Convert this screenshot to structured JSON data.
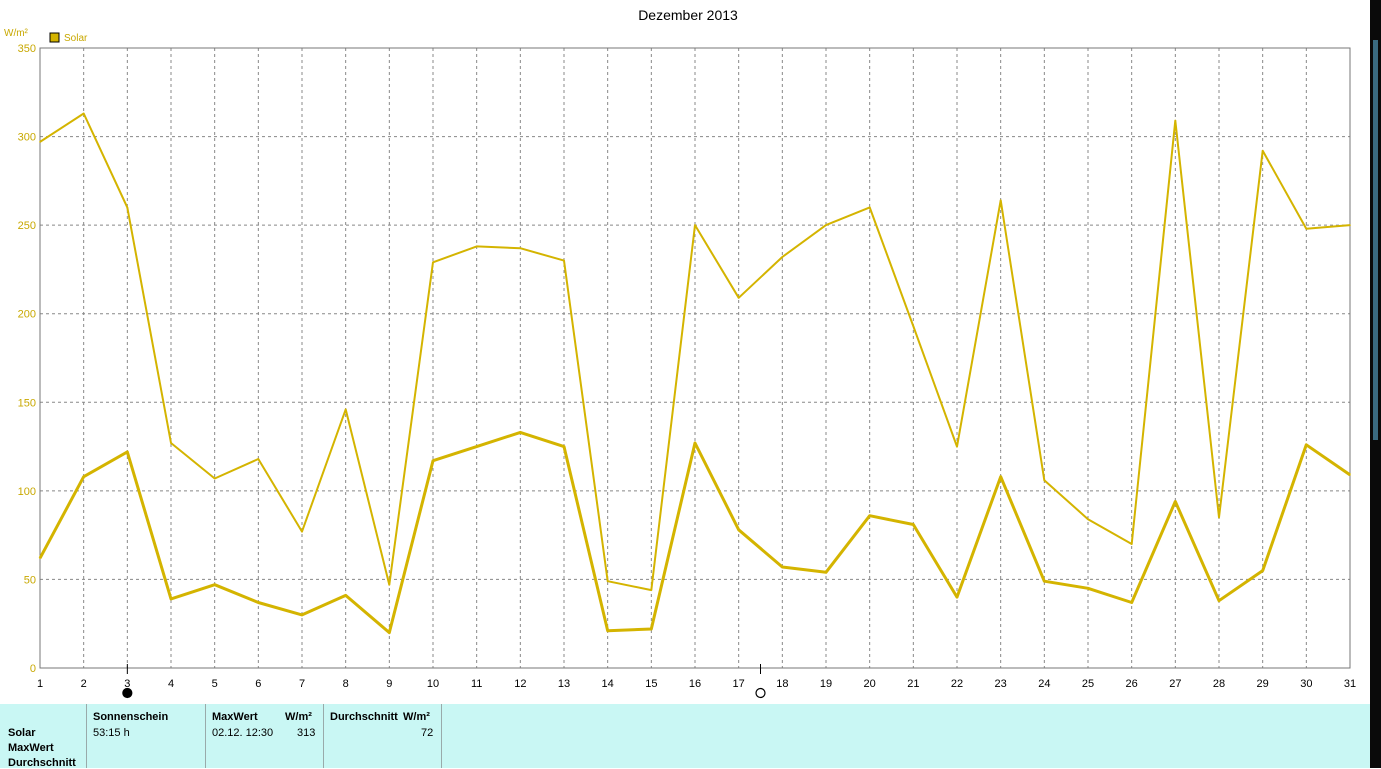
{
  "chart_data": {
    "type": "line",
    "title": "Dezember 2013",
    "ylabel": "W/m²",
    "ylim": [
      0,
      350
    ],
    "yticks": [
      0,
      50,
      100,
      150,
      200,
      250,
      300,
      350
    ],
    "x": [
      1,
      2,
      3,
      4,
      5,
      6,
      7,
      8,
      9,
      10,
      11,
      12,
      13,
      14,
      15,
      16,
      17,
      18,
      19,
      20,
      21,
      22,
      23,
      24,
      25,
      26,
      27,
      28,
      29,
      30,
      31
    ],
    "legend": {
      "position": "top-left",
      "entries": [
        "Solar"
      ]
    },
    "grid": true,
    "series": [
      {
        "name": "Solar",
        "color": "#d4b400",
        "values": [
          297,
          313,
          260,
          127,
          107,
          118,
          77,
          146,
          47,
          229,
          238,
          237,
          230,
          49,
          44,
          250,
          209,
          232,
          250,
          260,
          193,
          125,
          264,
          106,
          84,
          70,
          309,
          85,
          292,
          248,
          250
        ]
      },
      {
        "color": "#d4b400",
        "values": [
          62,
          108,
          122,
          39,
          47,
          37,
          30,
          41,
          20,
          117,
          125,
          133,
          125,
          21,
          22,
          127,
          78,
          57,
          54,
          86,
          81,
          40,
          108,
          49,
          45,
          37,
          94,
          38,
          55,
          126,
          109
        ]
      }
    ],
    "moon_markers": [
      {
        "day": 3,
        "phase": "new-moon"
      },
      {
        "day": 17.5,
        "phase": "full-moon"
      }
    ]
  },
  "stats": {
    "row_labels": [
      "Solar",
      "MaxWert",
      "Durchschnitt"
    ],
    "sunshine_header": "Sonnenschein",
    "sunshine_value": "53:15 h",
    "max_header": "MaxWert",
    "max_unit": "W/m²",
    "max_date": "02.12.  12:30",
    "max_value": "313",
    "avg_header": "Durchschnitt",
    "avg_unit": "W/m²",
    "avg_value": "72"
  },
  "colors": {
    "series": "#d4b400",
    "panel": "#c9f7f4",
    "axis_text": "#c8a800"
  }
}
